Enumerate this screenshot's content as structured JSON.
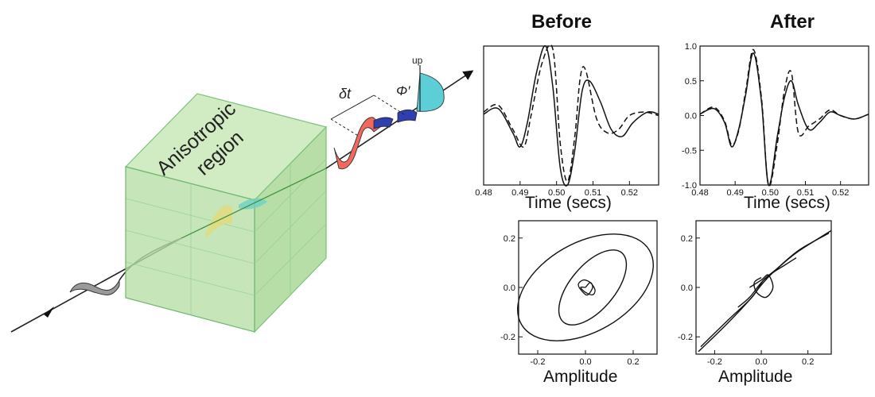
{
  "diagram": {
    "region_label_line1": "Anisotropic",
    "region_label_line2": "region",
    "delay_label": "δt",
    "angle_label": "Φ′",
    "up_label": "up",
    "colors": {
      "region_fill": "#b8dfa6",
      "region_edge": "#6fb86f",
      "wave_red": "#f2685c",
      "wave_blue": "#2f3fae",
      "wave_cyan": "#5ccfd6",
      "wave_gray": "#9a9a9a"
    }
  },
  "columns": {
    "before": "Before",
    "after": "After"
  },
  "chart_data": [
    {
      "id": "before-waveform",
      "type": "line",
      "xlabel": "Time (secs)",
      "xlim": [
        0.48,
        0.528
      ],
      "ylim": [
        -1.0,
        1.0
      ],
      "x_ticks": [
        "0.48",
        "0.49",
        "0.50",
        "0.51",
        "0.52"
      ],
      "y_ticks": [],
      "series": [
        {
          "style": "solid",
          "x": [
            0.48,
            0.484,
            0.488,
            0.49,
            0.492,
            0.4945,
            0.497,
            0.499,
            0.501,
            0.503,
            0.505,
            0.507,
            0.509,
            0.512,
            0.515,
            0.518,
            0.521,
            0.525,
            0.528
          ],
          "y": [
            0.02,
            0.1,
            -0.25,
            -0.45,
            -0.1,
            0.62,
            1.0,
            0.4,
            -0.75,
            -1.0,
            -0.5,
            0.35,
            0.5,
            0.2,
            -0.2,
            -0.3,
            -0.1,
            0.05,
            0.02
          ]
        },
        {
          "style": "dashed",
          "x": [
            0.48,
            0.484,
            0.488,
            0.491,
            0.493,
            0.496,
            0.499,
            0.501,
            0.503,
            0.505,
            0.5065,
            0.508,
            0.511,
            0.514,
            0.517,
            0.52,
            0.524,
            0.528
          ],
          "y": [
            0.05,
            0.15,
            -0.2,
            -0.45,
            0.0,
            0.75,
            0.95,
            -0.4,
            -0.95,
            -0.3,
            0.55,
            0.65,
            -0.05,
            -0.25,
            -0.2,
            0.0,
            0.05,
            0.0
          ]
        }
      ]
    },
    {
      "id": "after-waveform",
      "type": "line",
      "xlabel": "Time (secs)",
      "xlim": [
        0.48,
        0.528
      ],
      "ylim": [
        -1.0,
        1.0
      ],
      "x_ticks": [
        "0.48",
        "0.49",
        "0.50",
        "0.51",
        "0.52"
      ],
      "y_ticks": [
        "1.0",
        "0.5",
        "0.0",
        "-0.5",
        "-1.0"
      ],
      "series": [
        {
          "style": "solid",
          "x": [
            0.48,
            0.484,
            0.487,
            0.489,
            0.491,
            0.493,
            0.4952,
            0.4975,
            0.4995,
            0.502,
            0.504,
            0.506,
            0.508,
            0.511,
            0.514,
            0.517,
            0.52,
            0.524,
            0.528
          ],
          "y": [
            0.02,
            0.1,
            -0.1,
            -0.45,
            -0.2,
            0.3,
            0.9,
            0.2,
            -1.0,
            -0.3,
            0.25,
            0.5,
            0.15,
            -0.2,
            -0.1,
            0.05,
            0.0,
            -0.05,
            0.02
          ]
        },
        {
          "style": "dashed",
          "x": [
            0.48,
            0.484,
            0.487,
            0.489,
            0.491,
            0.493,
            0.4952,
            0.4975,
            0.4995,
            0.502,
            0.504,
            0.506,
            0.508,
            0.511,
            0.514,
            0.517,
            0.52,
            0.524,
            0.528
          ],
          "y": [
            0.02,
            0.12,
            -0.08,
            -0.42,
            -0.22,
            0.35,
            0.95,
            0.25,
            -1.0,
            -0.4,
            0.35,
            0.62,
            -0.25,
            -0.15,
            -0.05,
            0.08,
            0.0,
            -0.05,
            0.02
          ]
        }
      ]
    },
    {
      "id": "before-particle-motion",
      "type": "scatter",
      "xlabel": "Amplitude",
      "xlim": [
        -0.28,
        0.3
      ],
      "ylim": [
        -0.27,
        0.27
      ],
      "x_ticks": [
        "-0.2",
        "0.0",
        "0.2"
      ],
      "y_ticks": [
        "0.2",
        "0.0",
        "-0.2"
      ],
      "loops": [
        {
          "cx": 0.0,
          "cy": 0.0,
          "rx": 0.31,
          "ry": 0.18,
          "angle_deg": 30
        },
        {
          "cx": 0.03,
          "cy": 0.0,
          "rx": 0.19,
          "ry": 0.09,
          "angle_deg": 50
        }
      ],
      "small_loop": {
        "x": [
          0.0,
          0.02,
          0.03,
          0.01,
          -0.01,
          -0.03,
          -0.01,
          0.02,
          0.04,
          0.03,
          0.0,
          -0.02,
          0.0
        ],
        "y": [
          0.0,
          0.02,
          0.0,
          -0.03,
          -0.02,
          0.01,
          0.03,
          0.02,
          -0.01,
          -0.03,
          -0.02,
          0.0,
          0.0
        ]
      }
    },
    {
      "id": "after-particle-motion",
      "type": "scatter",
      "xlabel": "Amplitude",
      "xlim": [
        -0.28,
        0.3
      ],
      "ylim": [
        -0.27,
        0.27
      ],
      "x_ticks": [
        "-0.2",
        "0.0",
        "0.2"
      ],
      "y_ticks": [
        "0.2",
        "0.0",
        "-0.2"
      ],
      "traces": [
        {
          "x": [
            -0.27,
            -0.15,
            -0.05,
            0.0,
            0.05,
            0.15,
            0.3
          ],
          "y": [
            -0.26,
            -0.15,
            -0.05,
            0.01,
            0.06,
            0.14,
            0.23
          ]
        },
        {
          "x": [
            -0.26,
            -0.14,
            -0.04,
            0.01,
            0.06,
            0.16,
            0.29
          ],
          "y": [
            -0.24,
            -0.13,
            -0.04,
            0.03,
            0.07,
            0.15,
            0.22
          ]
        },
        {
          "x": [
            -0.1,
            -0.05,
            0.0,
            0.05,
            0.1,
            0.15
          ],
          "y": [
            -0.08,
            -0.04,
            0.02,
            0.06,
            0.09,
            0.12
          ]
        },
        {
          "x": [
            -0.05,
            0.0,
            0.03,
            0.05,
            0.02,
            -0.02,
            -0.03,
            0.0
          ],
          "y": [
            0.0,
            0.03,
            0.05,
            0.0,
            -0.04,
            -0.02,
            0.02,
            0.04
          ]
        }
      ]
    }
  ]
}
